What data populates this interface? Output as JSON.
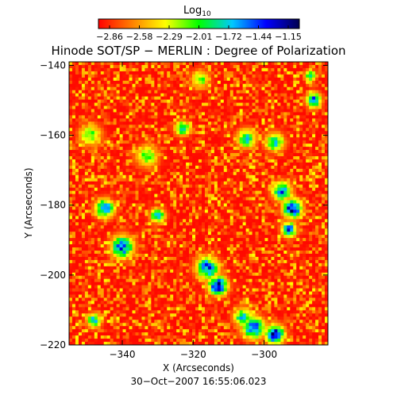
{
  "chart_data": {
    "type": "heatmap",
    "title": "Hinode SOT/SP − MERLIN : Degree of Polarization",
    "colorbar": {
      "label_base": "Log",
      "label_sub": "10",
      "ticks": [
        "−2.86",
        "−2.58",
        "−2.29",
        "−2.01",
        "−1.72",
        "−1.44",
        "−1.15"
      ],
      "range": [
        -2.86,
        -1.15
      ],
      "colors": [
        "#ff0000",
        "#ff7f00",
        "#ffff00",
        "#00ff00",
        "#00c8ff",
        "#0000ff",
        "#000050"
      ]
    },
    "xlabel": "X (Arcseconds)",
    "ylabel": "Y (Arcseconds)",
    "xlim": [
      -355,
      -282
    ],
    "ylim": [
      -220,
      -139
    ],
    "xticks": [
      {
        "value": -340,
        "label": "−340"
      },
      {
        "value": -320,
        "label": "−320"
      },
      {
        "value": -300,
        "label": "−300"
      }
    ],
    "yticks": [
      {
        "value": -140,
        "label": "−140"
      },
      {
        "value": -160,
        "label": "−160"
      },
      {
        "value": -180,
        "label": "−180"
      },
      {
        "value": -200,
        "label": "−200"
      },
      {
        "value": -220,
        "label": "−220"
      }
    ],
    "timestamp": "30−Oct−2007  16:55:06.023",
    "grid": false,
    "features": [
      {
        "x": -345,
        "y": -181,
        "value": -1.44,
        "extent": 2.5
      },
      {
        "x": -340,
        "y": -192,
        "value": -1.44,
        "extent": 3
      },
      {
        "x": -330,
        "y": -183,
        "value": -1.72,
        "extent": 2
      },
      {
        "x": -323,
        "y": -158,
        "value": -1.72,
        "extent": 2
      },
      {
        "x": -316,
        "y": -198,
        "value": -1.44,
        "extent": 3
      },
      {
        "x": -313,
        "y": -203,
        "value": -1.15,
        "extent": 2.5
      },
      {
        "x": -305,
        "y": -161,
        "value": -1.72,
        "extent": 2.5
      },
      {
        "x": -297,
        "y": -162,
        "value": -1.72,
        "extent": 2.5
      },
      {
        "x": -295,
        "y": -176,
        "value": -1.44,
        "extent": 2.5
      },
      {
        "x": -292,
        "y": -181,
        "value": -1.15,
        "extent": 2.5
      },
      {
        "x": -293,
        "y": -187,
        "value": -1.44,
        "extent": 2
      },
      {
        "x": -286,
        "y": -150,
        "value": -1.44,
        "extent": 2
      },
      {
        "x": -287,
        "y": -143,
        "value": -1.72,
        "extent": 1.5
      },
      {
        "x": -303,
        "y": -215,
        "value": -1.44,
        "extent": 3
      },
      {
        "x": -297,
        "y": -217,
        "value": -1.15,
        "extent": 2.5
      },
      {
        "x": -306,
        "y": -212,
        "value": -1.72,
        "extent": 2.5
      },
      {
        "x": -348,
        "y": -213,
        "value": -1.72,
        "extent": 2
      },
      {
        "x": -333,
        "y": -166,
        "value": -2.01,
        "extent": 3
      },
      {
        "x": -349,
        "y": -160,
        "value": -2.01,
        "extent": 3
      },
      {
        "x": -318,
        "y": -144,
        "value": -2.01,
        "extent": 2.5
      }
    ]
  }
}
